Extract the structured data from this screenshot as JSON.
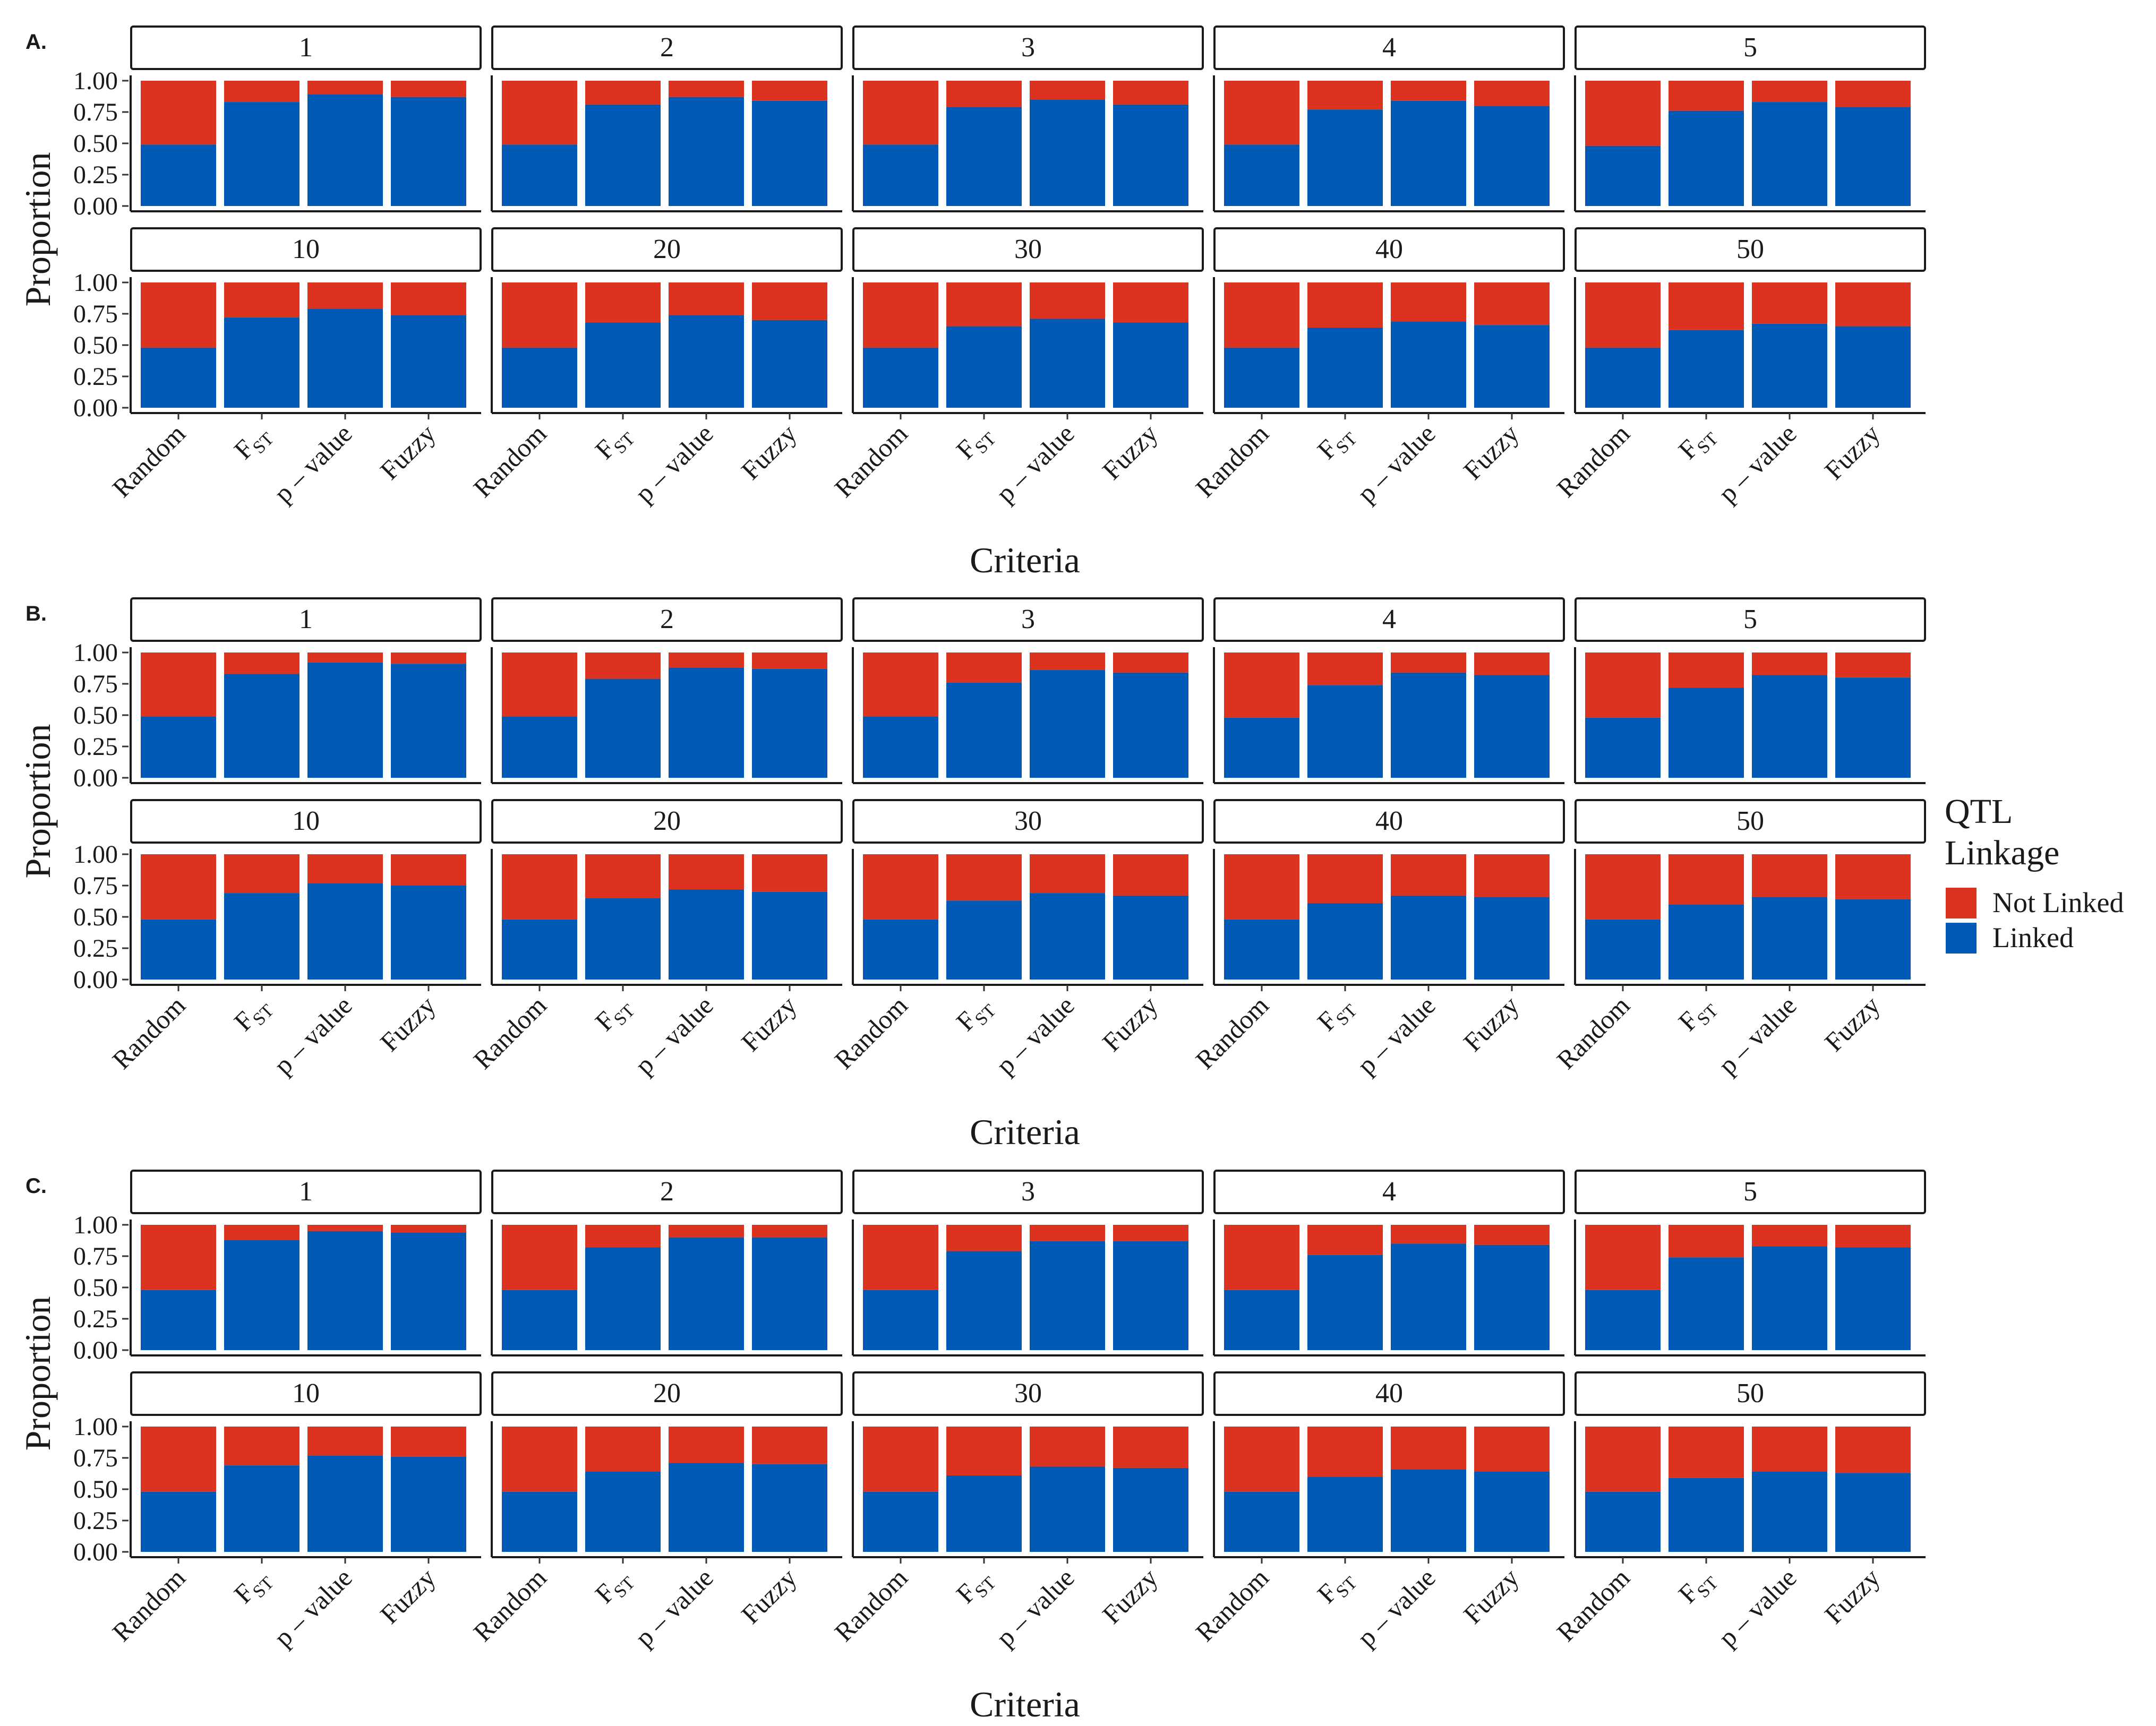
{
  "chart_data": {
    "type": "bar",
    "stacked": true,
    "panels": [
      "A.",
      "B.",
      "C."
    ],
    "facets": [
      "1",
      "2",
      "3",
      "4",
      "5",
      "10",
      "20",
      "30",
      "40",
      "50"
    ],
    "categories": [
      "Random",
      "F_ST",
      "p – value",
      "Fuzzy"
    ],
    "category_labels": [
      {
        "main": "Random",
        "sub": ""
      },
      {
        "main": "F",
        "sub": "ST"
      },
      {
        "main": "p – value",
        "sub": ""
      },
      {
        "main": "Fuzzy",
        "sub": ""
      }
    ],
    "ylabel": "Proportion",
    "xlabel": "Criteria",
    "ylim": [
      0,
      1
    ],
    "yticks": [
      "0.00",
      "0.25",
      "0.50",
      "0.75",
      "1.00"
    ],
    "legend": {
      "title": [
        "QTL",
        "Linkage"
      ],
      "entries": [
        {
          "name": "Not Linked",
          "color": "#DC3220"
        },
        {
          "name": "Linked",
          "color": "#005AB5"
        }
      ],
      "position": "right"
    },
    "linked_values": {
      "A.": {
        "1": [
          0.49,
          0.83,
          0.89,
          0.87
        ],
        "2": [
          0.49,
          0.81,
          0.87,
          0.84
        ],
        "3": [
          0.49,
          0.79,
          0.85,
          0.81
        ],
        "4": [
          0.49,
          0.77,
          0.84,
          0.8
        ],
        "5": [
          0.48,
          0.76,
          0.83,
          0.79
        ],
        "10": [
          0.48,
          0.72,
          0.79,
          0.74
        ],
        "20": [
          0.48,
          0.68,
          0.74,
          0.7
        ],
        "30": [
          0.48,
          0.65,
          0.71,
          0.68
        ],
        "40": [
          0.48,
          0.64,
          0.69,
          0.66
        ],
        "50": [
          0.48,
          0.62,
          0.67,
          0.65
        ]
      },
      "B.": {
        "1": [
          0.49,
          0.83,
          0.92,
          0.91
        ],
        "2": [
          0.49,
          0.79,
          0.88,
          0.87
        ],
        "3": [
          0.49,
          0.76,
          0.86,
          0.84
        ],
        "4": [
          0.48,
          0.74,
          0.84,
          0.82
        ],
        "5": [
          0.48,
          0.72,
          0.82,
          0.8
        ],
        "10": [
          0.48,
          0.69,
          0.77,
          0.75
        ],
        "20": [
          0.48,
          0.65,
          0.72,
          0.7
        ],
        "30": [
          0.48,
          0.63,
          0.69,
          0.67
        ],
        "40": [
          0.48,
          0.61,
          0.67,
          0.66
        ],
        "50": [
          0.48,
          0.6,
          0.66,
          0.64
        ]
      },
      "C.": {
        "1": [
          0.48,
          0.88,
          0.95,
          0.94
        ],
        "2": [
          0.48,
          0.82,
          0.9,
          0.9
        ],
        "3": [
          0.48,
          0.79,
          0.87,
          0.87
        ],
        "4": [
          0.48,
          0.76,
          0.85,
          0.84
        ],
        "5": [
          0.48,
          0.74,
          0.83,
          0.82
        ],
        "10": [
          0.48,
          0.69,
          0.77,
          0.76
        ],
        "20": [
          0.48,
          0.64,
          0.71,
          0.7
        ],
        "30": [
          0.48,
          0.61,
          0.68,
          0.67
        ],
        "40": [
          0.48,
          0.6,
          0.66,
          0.64
        ],
        "50": [
          0.48,
          0.59,
          0.64,
          0.63
        ]
      }
    }
  }
}
